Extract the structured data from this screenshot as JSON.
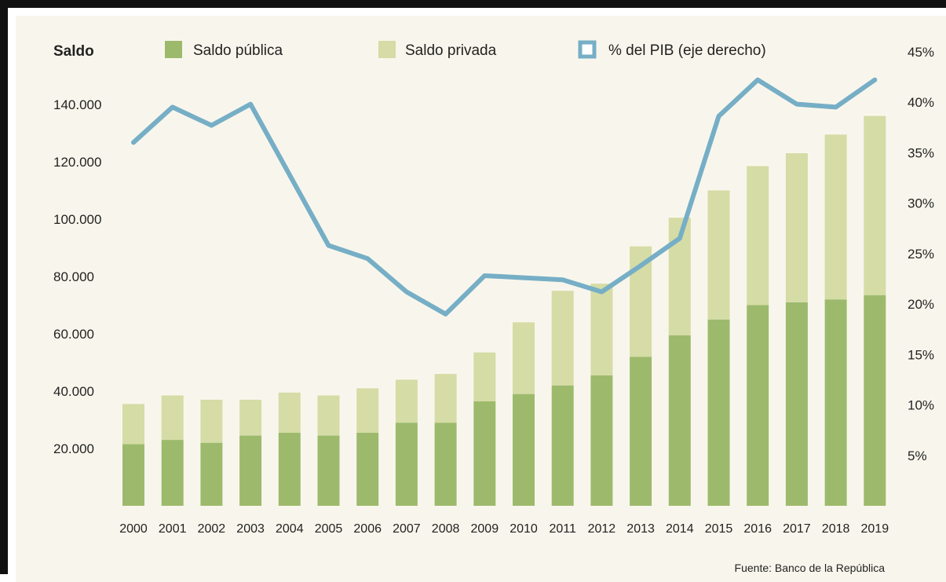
{
  "chart_data": {
    "type": "bar",
    "stacked": true,
    "title": "",
    "left_axis_label": "Saldo",
    "ylim": [
      0,
      150000
    ],
    "y_ticks": [
      "20.000",
      "40.000",
      "60.000",
      "80.000",
      "100.000",
      "120.000",
      "140.000"
    ],
    "y_tick_values": [
      20000,
      40000,
      60000,
      80000,
      100000,
      120000,
      140000
    ],
    "y2lim": [
      0,
      50
    ],
    "y2_ticks": [
      "5%",
      "10%",
      "15%",
      "20%",
      "25%",
      "30%",
      "35%",
      "40%",
      "45%"
    ],
    "y2_tick_values": [
      5,
      10,
      15,
      20,
      25,
      30,
      35,
      40,
      45
    ],
    "categories": [
      "2000",
      "2001",
      "2002",
      "2003",
      "2004",
      "2005",
      "2006",
      "2007",
      "2008",
      "2009",
      "2010",
      "2011",
      "2012",
      "2013",
      "2014",
      "2015",
      "2016",
      "2017",
      "2018",
      "2019"
    ],
    "series": [
      {
        "name": "Saldo pública",
        "kind": "bar",
        "color": "#9dba6c",
        "values": [
          21500,
          23000,
          22000,
          24500,
          25500,
          24500,
          25500,
          29000,
          29000,
          36500,
          39000,
          42000,
          45500,
          52000,
          59500,
          65000,
          70000,
          71000,
          72000,
          73500
        ]
      },
      {
        "name": "Saldo privada",
        "kind": "bar",
        "color": "#d5dca5",
        "values": [
          14000,
          15500,
          15000,
          12500,
          14000,
          14000,
          15500,
          15000,
          17000,
          17000,
          25000,
          33000,
          32000,
          38500,
          41000,
          45000,
          48500,
          52000,
          57500,
          62500
        ]
      },
      {
        "name": "% del PIB (eje derecho)",
        "kind": "line",
        "axis": "right",
        "color": "#76aec6",
        "values": [
          36,
          39.5,
          37.7,
          39.8,
          32.8,
          25.8,
          24.5,
          21.2,
          19,
          22.8,
          22.6,
          22.4,
          21.2,
          23.8,
          26.5,
          38.6,
          42.2,
          39.8,
          39.5,
          42.2
        ]
      }
    ],
    "legend_position": "top",
    "grid": false,
    "source": "Fuente: Banco de la República"
  }
}
